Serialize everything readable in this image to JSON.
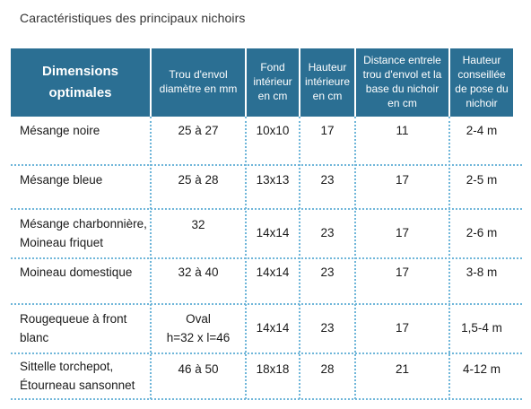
{
  "caption": "Caractéristiques des principaux nichoirs",
  "table": {
    "headers": {
      "dimensions": "Dimensions optimales",
      "trou": "Trou d'envol diamètre en mm",
      "fond": "Fond intérieur en cm",
      "hauteur": "Hauteur intérieure en cm",
      "distance": "Distance entrele trou d'envol et la base du nichoir en cm",
      "pose": "Hauteur conseillée de pose du nichoir"
    },
    "rows": [
      {
        "espece": [
          "Mésange noire"
        ],
        "trou": [
          "25 à 27"
        ],
        "fond": "10x10",
        "hauteur": "17",
        "distance": "11",
        "pose": "2-4 m"
      },
      {
        "espece": [
          "Mésange bleue"
        ],
        "trou": [
          "25 à 28"
        ],
        "fond": "13x13",
        "hauteur": "23",
        "distance": "17",
        "pose": "2-5 m"
      },
      {
        "espece": [
          "Mésange charbonnière,",
          "Moineau friquet"
        ],
        "trou": [
          "32"
        ],
        "fond": "14x14",
        "hauteur": "23",
        "distance": "17",
        "pose": "2-6 m"
      },
      {
        "espece": [
          "Moineau domestique"
        ],
        "trou": [
          "32 à 40"
        ],
        "fond": "14x14",
        "hauteur": "23",
        "distance": "17",
        "pose": "3-8 m"
      },
      {
        "espece": [
          "Rougequeue à front",
          "blanc"
        ],
        "trou": [
          "Oval",
          "h=32 x l=46"
        ],
        "fond": "14x14",
        "hauteur": "23",
        "distance": "17",
        "pose": "1,5-4 m"
      },
      {
        "espece": [
          "Sittelle torchepot,",
          "Étourneau sansonnet"
        ],
        "trou": [
          "46 à 50"
        ],
        "fond": "18x18",
        "hauteur": "28",
        "distance": "21",
        "pose": "4-12 m"
      }
    ]
  },
  "colors": {
    "header_bg": "#2b6f93",
    "separator": "#6fb6d9"
  }
}
